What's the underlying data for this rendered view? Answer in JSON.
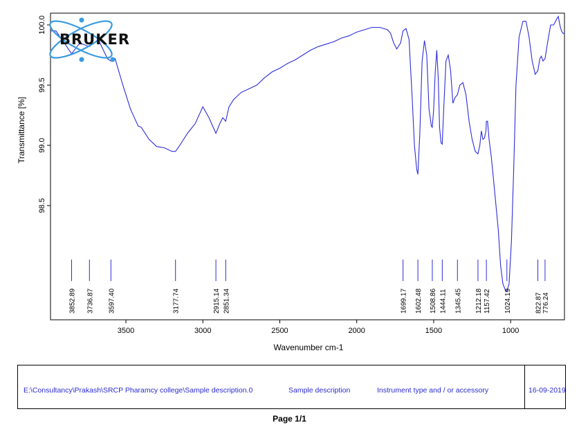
{
  "logo": {
    "text": "BRUKER"
  },
  "chart_data": {
    "type": "line",
    "title": "",
    "xlabel": "Wavenumber cm-1",
    "ylabel": "Transmittance [%]",
    "xlim": [
      3990,
      650
    ],
    "ylim": [
      97.5,
      100.05
    ],
    "x_ticks": [
      3500,
      3000,
      2500,
      2000,
      1500,
      1000
    ],
    "y_ticks": [
      98.5,
      99.0,
      99.5,
      100.0
    ],
    "y_tick_labels": [
      "98.5",
      "99.0",
      "99.5",
      "100.0"
    ],
    "line_color": "#2b2bd9",
    "series": [
      {
        "x": [
          3990,
          3955,
          3900,
          3852.89,
          3800,
          3736.87,
          3680,
          3620,
          3597.4,
          3570,
          3520,
          3470,
          3420,
          3400,
          3350,
          3300,
          3250,
          3200,
          3177.74,
          3150,
          3100,
          3050,
          3000,
          2960,
          2940,
          2915.14,
          2890,
          2870,
          2851.34,
          2830,
          2800,
          2750,
          2700,
          2650,
          2600,
          2550,
          2500,
          2450,
          2400,
          2350,
          2300,
          2250,
          2200,
          2150,
          2100,
          2050,
          2000,
          1950,
          1900,
          1850,
          1800,
          1780,
          1760,
          1740,
          1715,
          1699.17,
          1680,
          1660,
          1640,
          1625,
          1610,
          1602.48,
          1590,
          1575,
          1560,
          1545,
          1530,
          1515,
          1508.86,
          1500,
          1490,
          1480,
          1470,
          1462,
          1452,
          1444.11,
          1435,
          1420,
          1405,
          1390,
          1375,
          1360,
          1345.45,
          1330,
          1310,
          1290,
          1270,
          1250,
          1230,
          1212.18,
          1200,
          1190,
          1180,
          1170,
          1160,
          1157.42,
          1150,
          1140,
          1125,
          1110,
          1095,
          1080,
          1065,
          1050,
          1035,
          1024.19,
          1010,
          995,
          980,
          965,
          945,
          920,
          900,
          880,
          860,
          840,
          822.87,
          810,
          800,
          790,
          776.24,
          760,
          740,
          720,
          700,
          690,
          680,
          670,
          660,
          650
        ],
        "y": [
          99.95,
          99.95,
          99.85,
          99.76,
          99.85,
          99.82,
          99.88,
          99.72,
          99.7,
          99.72,
          99.5,
          99.3,
          99.16,
          99.15,
          99.05,
          98.99,
          98.98,
          98.95,
          98.95,
          99.0,
          99.1,
          99.18,
          99.32,
          99.23,
          99.17,
          99.1,
          99.18,
          99.23,
          99.2,
          99.32,
          99.38,
          99.44,
          99.47,
          99.5,
          99.56,
          99.61,
          99.64,
          99.68,
          99.71,
          99.75,
          99.79,
          99.82,
          99.84,
          99.86,
          99.89,
          99.91,
          99.94,
          99.96,
          99.98,
          99.98,
          99.96,
          99.93,
          99.85,
          99.8,
          99.85,
          99.95,
          99.97,
          99.88,
          99.4,
          99.0,
          98.8,
          98.76,
          99.1,
          99.7,
          99.87,
          99.75,
          99.3,
          99.16,
          99.15,
          99.3,
          99.6,
          99.79,
          99.55,
          99.15,
          99.02,
          99.01,
          99.3,
          99.7,
          99.75,
          99.62,
          99.35,
          99.4,
          99.42,
          99.5,
          99.52,
          99.42,
          99.2,
          99.05,
          98.95,
          98.93,
          99.0,
          99.12,
          99.05,
          99.06,
          99.12,
          99.2,
          99.2,
          99.05,
          98.9,
          98.7,
          98.5,
          98.3,
          98.0,
          97.85,
          97.8,
          97.79,
          97.85,
          98.2,
          98.8,
          99.5,
          99.9,
          100.03,
          100.03,
          99.9,
          99.7,
          99.59,
          99.62,
          99.72,
          99.74,
          99.7,
          99.72,
          99.85,
          100.0,
          100.0,
          100.05,
          100.07,
          100.0,
          99.95,
          99.93,
          99.93
        ]
      }
    ],
    "peaks": [
      "3852.89",
      "3736.87",
      "3597.40",
      "3177.74",
      "2915.14",
      "2851.34",
      "1699.17",
      "1602.48",
      "1508.86",
      "1444.11",
      "1345.45",
      "1212.18",
      "1157.42",
      "1024.19",
      "822.87",
      "776.24"
    ]
  },
  "footer": {
    "file_path": "E:\\Consultancy\\Prakash\\SRCP Pharamcy college\\Sample description.0",
    "sample_description": "Sample description",
    "instrument": "Instrument type and / or accessory",
    "date": "16-09-2019"
  },
  "page": {
    "label": "Page 1/1"
  }
}
